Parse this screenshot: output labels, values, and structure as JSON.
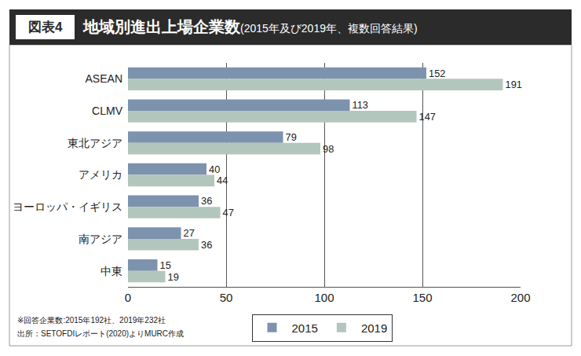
{
  "chart_data": {
    "type": "bar",
    "label": "図表4",
    "title": "地域別進出上場企業数",
    "subtitle": "(2015年及び2019年、複数回答結果)",
    "orientation": "horizontal",
    "categories": [
      "ASEAN",
      "CLMV",
      "東北アジア",
      "アメリカ",
      "ヨーロッパ・イギリス",
      "南アジア",
      "中東"
    ],
    "series": [
      {
        "name": "2015",
        "color": "#7d92ad",
        "values": [
          152,
          113,
          79,
          40,
          36,
          27,
          15
        ]
      },
      {
        "name": "2019",
        "color": "#b2c6be",
        "values": [
          191,
          147,
          98,
          44,
          47,
          36,
          19
        ]
      }
    ],
    "xlim": [
      0,
      200
    ],
    "xticks": [
      0,
      50,
      100,
      150,
      200
    ],
    "grid": true,
    "data_labels": true,
    "legend": "bottom",
    "annotations": [
      "※回答企業数:2015年192社、2019年232社",
      "出所：SETOFDIレポート(2020)よりMURC作成"
    ]
  }
}
